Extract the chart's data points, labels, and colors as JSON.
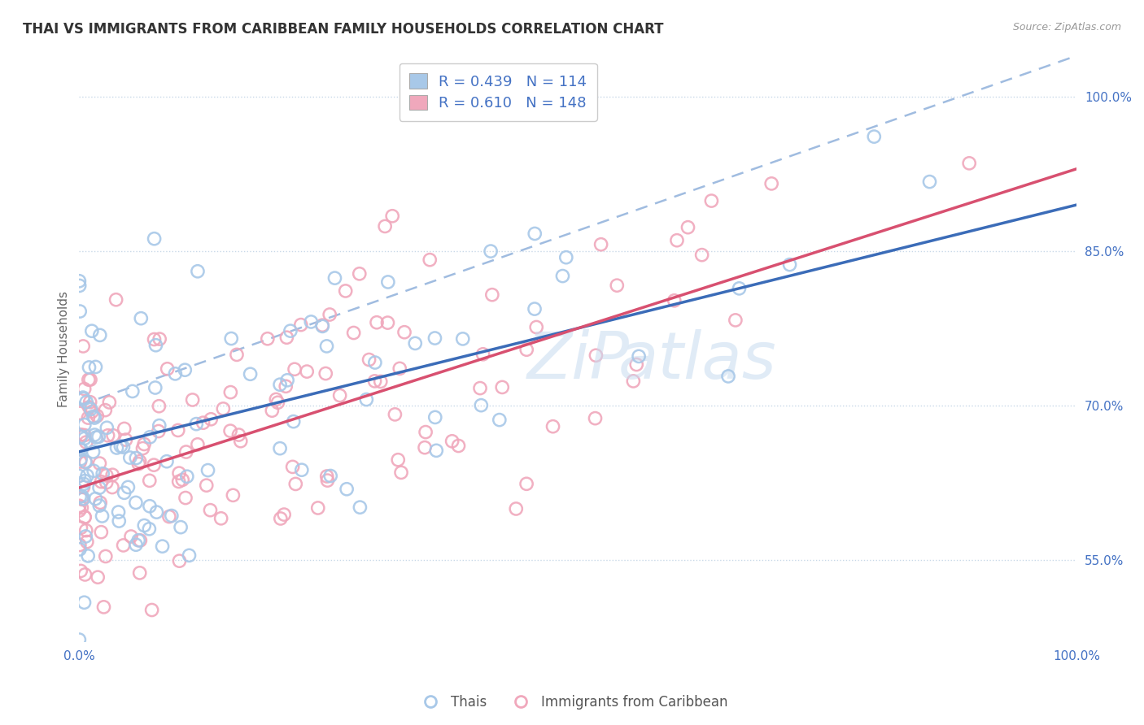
{
  "title": "THAI VS IMMIGRANTS FROM CARIBBEAN FAMILY HOUSEHOLDS CORRELATION CHART",
  "source_text": "Source: ZipAtlas.com",
  "ylabel": "Family Households",
  "legend_labels": [
    "Thais",
    "Immigrants from Caribbean"
  ],
  "r_blue": 0.439,
  "n_blue": 114,
  "r_pink": 0.61,
  "n_pink": 148,
  "blue_color": "#A8C8E8",
  "pink_color": "#F0A8BC",
  "blue_line_color": "#3B6CB8",
  "pink_line_color": "#D85070",
  "dashed_line_color": "#A0BCE0",
  "xlim": [
    0.0,
    1.0
  ],
  "ylim": [
    0.47,
    1.04
  ],
  "yticks": [
    0.55,
    0.7,
    0.85,
    1.0
  ],
  "ytick_labels": [
    "55.0%",
    "70.0%",
    "85.0%",
    "100.0%"
  ],
  "xticks": [
    0.0,
    1.0
  ],
  "xtick_labels": [
    "0.0%",
    "100.0%"
  ],
  "blue_line_x0": 0.0,
  "blue_line_y0": 0.655,
  "blue_line_x1": 1.0,
  "blue_line_y1": 0.895,
  "pink_line_x0": 0.0,
  "pink_line_y0": 0.62,
  "pink_line_x1": 1.0,
  "pink_line_y1": 0.93,
  "dash_line_x0": 0.0,
  "dash_line_y0": 0.7,
  "dash_line_x1": 1.0,
  "dash_line_y1": 1.04,
  "title_fontsize": 12,
  "axis_label_fontsize": 11,
  "tick_fontsize": 11,
  "background_color": "#FFFFFF",
  "grid_color": "#C8D8E8",
  "watermark": "ZiPatlas"
}
